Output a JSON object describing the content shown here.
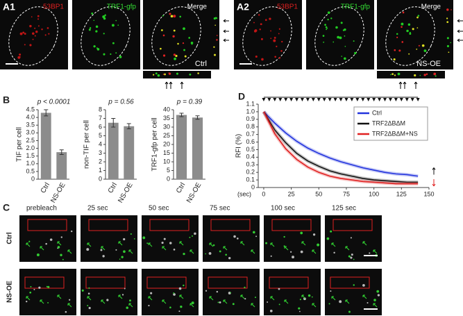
{
  "panel_a": [
    {
      "label": "A1",
      "channels": [
        "53BP1",
        "TRF1-gfp",
        "Merge"
      ],
      "condition": "Ctrl"
    },
    {
      "label": "A2",
      "channels": [
        "53BP1",
        "TRF1-gfp",
        "Merge"
      ],
      "condition": "NS-OE"
    }
  ],
  "panel_labels": [
    "B",
    "C",
    "D"
  ],
  "panel_c": {
    "timepoints": [
      "prebleach",
      "25 sec",
      "50 sec",
      "75 sec",
      "100 sec",
      "125 sec"
    ],
    "rows": [
      "Ctrl",
      "NS-OE"
    ]
  },
  "chart_data": [
    {
      "type": "bar",
      "title": "p < 0.0001",
      "ylabel": "TIF per cell",
      "categories": [
        "Ctrl",
        "NS-OE"
      ],
      "values": [
        4.3,
        1.75
      ],
      "errors": [
        0.2,
        0.15
      ],
      "color": "#8c8c8c",
      "ylim": [
        0,
        4.5
      ],
      "yticks": [
        0,
        {
          "value": 0.5,
          "label": "0.5"
        },
        {
          "value": 1,
          "label": "1.0"
        },
        {
          "value": 1.5,
          "label": "1.5"
        },
        {
          "value": 2,
          "label": "2.0"
        },
        {
          "value": 2.5,
          "label": "2.5"
        },
        {
          "value": 3,
          "label": "3.0"
        },
        {
          "value": 3.5,
          "label": "3.5"
        },
        {
          "value": 4,
          "label": "4.0"
        },
        {
          "value": 4.5,
          "label": "4.5"
        }
      ]
    },
    {
      "type": "bar",
      "title": "p = 0.56",
      "ylabel": "non-TIF per cell",
      "categories": [
        "Ctrl",
        "NS-OE"
      ],
      "values": [
        6.5,
        6.1
      ],
      "errors": [
        0.5,
        0.3
      ],
      "color": "#8c8c8c",
      "ylim": [
        0,
        8
      ],
      "yticks": [
        0,
        1,
        2,
        3,
        4,
        5,
        6,
        7,
        8
      ]
    },
    {
      "type": "bar",
      "title": "p = 0.39",
      "ylabel": "TRF1-gfp per cell",
      "categories": [
        "Ctrl",
        "NS-OE"
      ],
      "values": [
        37,
        35.5
      ],
      "errors": [
        1,
        1
      ],
      "color": "#8c8c8c",
      "ylim": [
        0,
        40
      ],
      "yticks": [
        0,
        5,
        10,
        15,
        20,
        25,
        30,
        35,
        40
      ]
    },
    {
      "type": "line",
      "ylabel": "RFI (%)",
      "xlabel": "(sec)",
      "x": [
        0,
        10,
        20,
        30,
        40,
        50,
        60,
        70,
        80,
        90,
        100,
        110,
        120,
        130,
        140
      ],
      "series": [
        {
          "name": "Ctrl",
          "color": "#2233dd",
          "values": [
            1.0,
            0.85,
            0.72,
            0.61,
            0.52,
            0.45,
            0.39,
            0.34,
            0.3,
            0.26,
            0.23,
            0.2,
            0.18,
            0.17,
            0.15
          ]
        },
        {
          "name": "TRF2ΔBΔM",
          "color": "#111111",
          "values": [
            1.0,
            0.76,
            0.59,
            0.45,
            0.35,
            0.28,
            0.22,
            0.18,
            0.15,
            0.12,
            0.1,
            0.09,
            0.08,
            0.07,
            0.07
          ]
        },
        {
          "name": "TRF2ΔBΔM+NS",
          "color": "#e02020",
          "values": [
            1.0,
            0.71,
            0.51,
            0.37,
            0.27,
            0.2,
            0.15,
            0.12,
            0.1,
            0.08,
            0.07,
            0.06,
            0.05,
            0.05,
            0.05
          ]
        }
      ],
      "xlim": [
        -5,
        150
      ],
      "xticks": [
        0,
        25,
        50,
        75,
        100,
        125,
        150
      ],
      "ylim": [
        0,
        1.1
      ],
      "yticks": [
        0,
        0.1,
        0.2,
        0.3,
        0.4,
        0.5,
        0.6,
        0.7,
        0.8,
        0.9,
        {
          "value": 1,
          "label": "1.0"
        },
        1.1
      ],
      "legend": "upper right"
    }
  ]
}
